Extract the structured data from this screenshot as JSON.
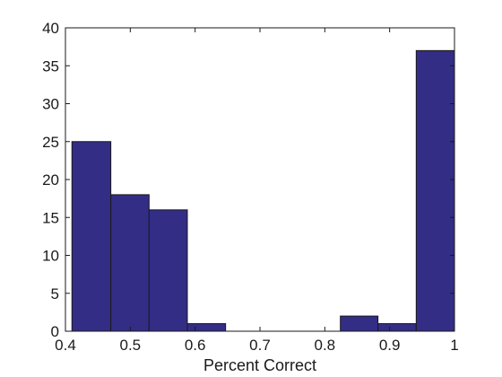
{
  "chart_data": {
    "type": "bar",
    "title": "",
    "xlabel": "Percent Correct",
    "ylabel": "",
    "xlim": [
      0.4,
      1.0
    ],
    "ylim": [
      0,
      40
    ],
    "grid": false,
    "bar_color": "#332D85",
    "bar_edge_color": "#1a1a1a",
    "bins": [
      {
        "x0": 0.41,
        "x1": 0.47,
        "value": 25
      },
      {
        "x0": 0.47,
        "x1": 0.529,
        "value": 18
      },
      {
        "x0": 0.529,
        "x1": 0.588,
        "value": 16
      },
      {
        "x0": 0.588,
        "x1": 0.647,
        "value": 1
      },
      {
        "x0": 0.647,
        "x1": 0.706,
        "value": 0
      },
      {
        "x0": 0.706,
        "x1": 0.765,
        "value": 0
      },
      {
        "x0": 0.765,
        "x1": 0.824,
        "value": 0
      },
      {
        "x0": 0.824,
        "x1": 0.882,
        "value": 2
      },
      {
        "x0": 0.882,
        "x1": 0.941,
        "value": 1
      },
      {
        "x0": 0.941,
        "x1": 1.0,
        "value": 37
      }
    ],
    "x_ticks": [
      "0.4",
      "0.5",
      "0.6",
      "0.7",
      "0.8",
      "0.9",
      "1"
    ],
    "y_ticks": [
      "0",
      "5",
      "10",
      "15",
      "20",
      "25",
      "30",
      "35",
      "40"
    ]
  }
}
